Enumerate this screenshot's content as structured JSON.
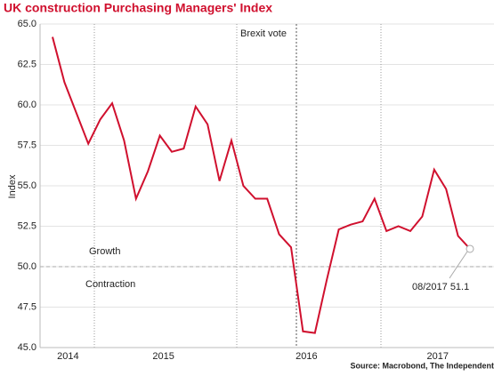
{
  "chart_data": {
    "type": "line",
    "title": "UK construction Purchasing Managers' Index",
    "y_label": "Index",
    "source": "Source: Macrobond, The Independent",
    "annotations": [
      "Brexit vote",
      "Growth",
      "Contraction",
      "08/2017 51.1"
    ],
    "categories": [
      null,
      "2014",
      null,
      null,
      null,
      null,
      null,
      null,
      null,
      "2015",
      null,
      null,
      null,
      null,
      null,
      null,
      null,
      null,
      null,
      null,
      null,
      "2016",
      null,
      null,
      null,
      null,
      null,
      null,
      null,
      null,
      null,
      null,
      "2017",
      null,
      null,
      null
    ],
    "series": [
      {
        "name": "UK construction PMI",
        "color": "#d0102e",
        "values": [
          64.2,
          61.4,
          59.5,
          57.6,
          59.1,
          60.1,
          57.8,
          54.2,
          55.9,
          58.1,
          57.1,
          57.3,
          59.9,
          58.8,
          55.3,
          57.8,
          55.0,
          54.2,
          54.2,
          52.0,
          51.2,
          46.0,
          45.9,
          49.2,
          52.3,
          52.6,
          52.8,
          54.2,
          52.2,
          52.5,
          52.2,
          53.1,
          56.0,
          54.8,
          51.9,
          51.1
        ]
      }
    ],
    "reference_line": 50,
    "ylim": [
      45,
      65
    ],
    "yticks": [
      {
        "value": 45,
        "label": "45.0"
      },
      47.5,
      {
        "value": 50,
        "label": "50.0"
      },
      52.5,
      {
        "value": 55,
        "label": "55.0"
      },
      57.5,
      {
        "value": 60,
        "label": "60.0"
      },
      62.5,
      {
        "value": 65,
        "label": "65.0"
      }
    ],
    "grid": true
  }
}
